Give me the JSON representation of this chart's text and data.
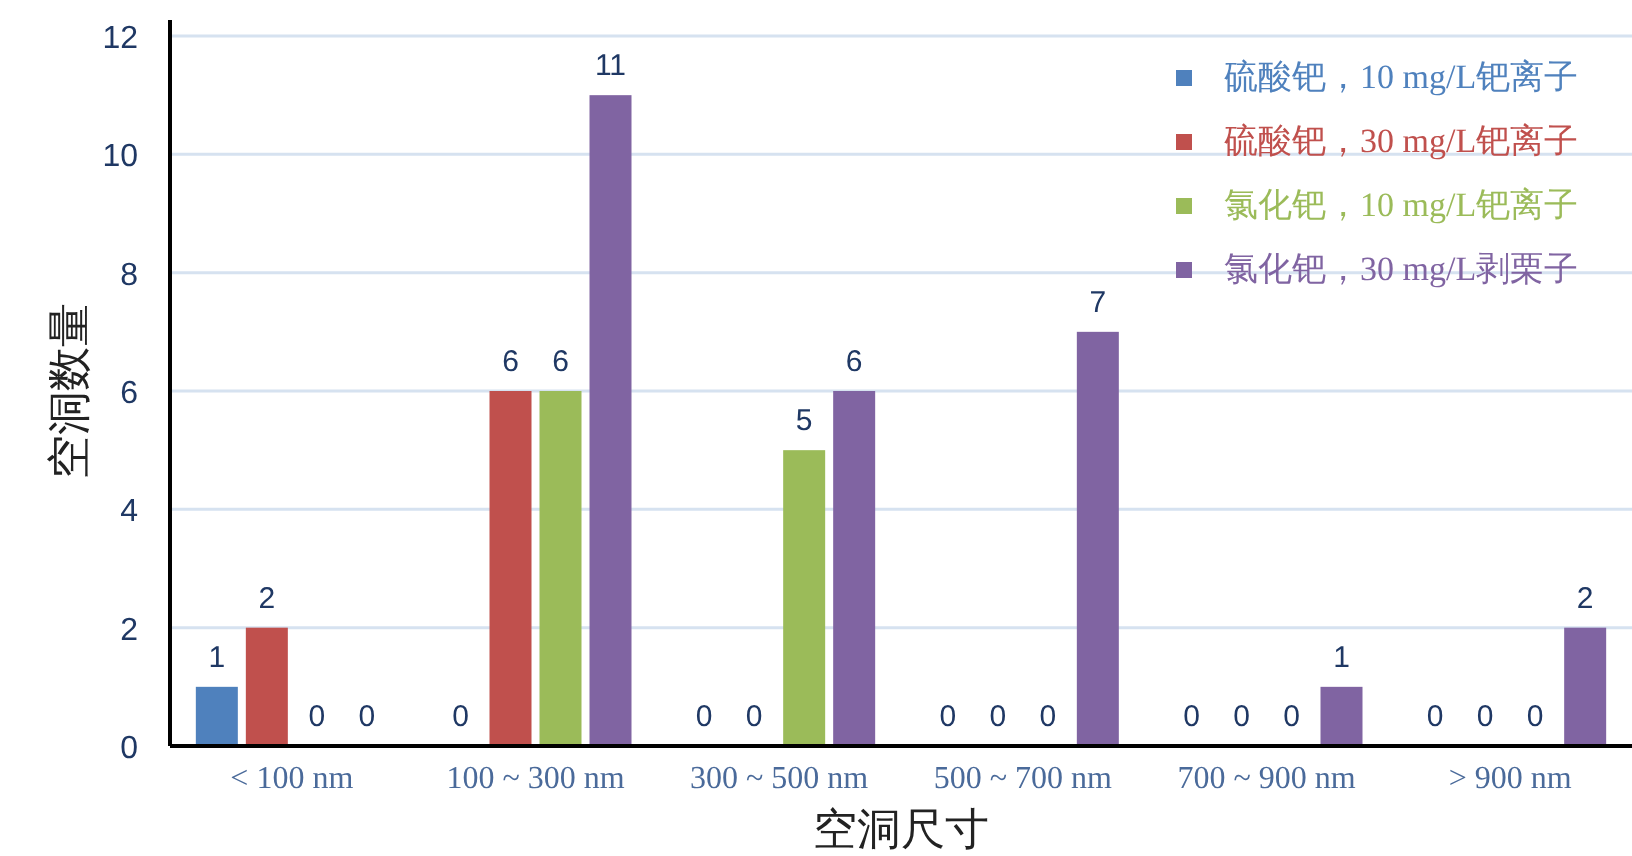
{
  "chart_data": {
    "type": "bar",
    "xlabel": "空洞尺寸",
    "ylabel": "空洞数量",
    "categories": [
      "< 100 nm",
      "100 ~ 300 nm",
      "300 ~ 500 nm",
      "500 ~ 700 nm",
      "700 ~ 900 nm",
      "> 900 nm"
    ],
    "series": [
      {
        "name": "硫酸钯，10 mg/L钯离子",
        "color": "#4f81bd",
        "values": [
          1,
          0,
          0,
          0,
          0,
          0
        ]
      },
      {
        "name": "硫酸钯，30 mg/L钯离子",
        "color": "#c0504d",
        "values": [
          2,
          6,
          0,
          0,
          0,
          0
        ]
      },
      {
        "name": "氯化钯，10 mg/L钯离子",
        "color": "#9bbb59",
        "values": [
          0,
          6,
          5,
          0,
          0,
          0
        ]
      },
      {
        "name": "氯化钯，30 mg/L剥栗子",
        "color": "#8064a2",
        "values": [
          0,
          11,
          6,
          7,
          1,
          2
        ]
      }
    ],
    "ylim": [
      0,
      12
    ],
    "yticks": [
      0,
      2,
      4,
      6,
      8,
      10,
      12
    ],
    "grid": "y",
    "legend": "top right",
    "data_labels": true
  }
}
